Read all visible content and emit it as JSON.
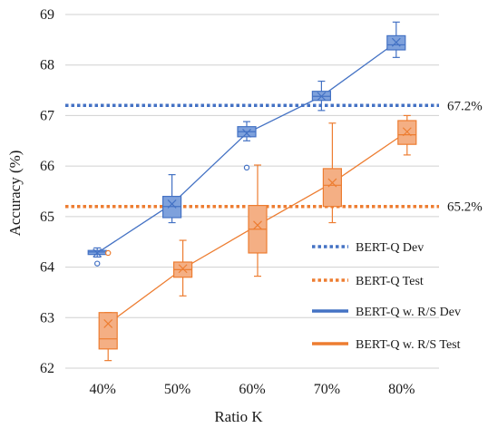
{
  "chart_data": {
    "type": "box",
    "xlabel": "Ratio K",
    "ylabel": "Accuracy (%)",
    "ylim": [
      62,
      69
    ],
    "yticks": [
      62,
      63,
      64,
      65,
      66,
      67,
      68,
      69
    ],
    "grid": "horizontal",
    "legend_position": "right",
    "categories": [
      "40%",
      "50%",
      "60%",
      "70%",
      "80%"
    ],
    "colors": {
      "dev": "#4472C4",
      "dev_fill": "#7EA1DC",
      "test": "#ED7D31",
      "test_fill": "#F4AF84"
    },
    "reference_lines": [
      {
        "name": "BERT-Q  Dev",
        "value": 67.2,
        "label": "67.2%",
        "color": "#4472C4"
      },
      {
        "name": "BERT-Q Test",
        "value": 65.2,
        "label": "65.2%",
        "color": "#ED7D31"
      }
    ],
    "series": [
      {
        "name": "BERT-Q w. R/S Dev",
        "color": "#4472C4",
        "boxes": [
          {
            "category": "40%",
            "min": 64.2,
            "q1": 64.25,
            "median": 64.3,
            "q3": 64.33,
            "max": 64.38,
            "mean": 64.28,
            "outliers": [
              64.07
            ]
          },
          {
            "category": "50%",
            "min": 64.88,
            "q1": 64.98,
            "median": 65.2,
            "q3": 65.4,
            "max": 65.83,
            "mean": 65.25,
            "outliers": []
          },
          {
            "category": "60%",
            "min": 66.5,
            "q1": 66.58,
            "median": 66.68,
            "q3": 66.78,
            "max": 66.88,
            "mean": 66.65,
            "outliers": [
              65.97
            ]
          },
          {
            "category": "70%",
            "min": 67.1,
            "q1": 67.3,
            "median": 67.38,
            "q3": 67.48,
            "max": 67.68,
            "mean": 67.38,
            "outliers": []
          },
          {
            "category": "80%",
            "min": 68.15,
            "q1": 68.3,
            "median": 68.4,
            "q3": 68.58,
            "max": 68.85,
            "mean": 68.45,
            "outliers": []
          }
        ]
      },
      {
        "name": "BERT-Q w. R/S Test",
        "color": "#ED7D31",
        "boxes": [
          {
            "category": "40%",
            "min": 62.15,
            "q1": 62.38,
            "median": 62.58,
            "q3": 63.1,
            "max": 63.1,
            "mean": 62.88,
            "outliers": [
              64.28
            ]
          },
          {
            "category": "50%",
            "min": 63.43,
            "q1": 63.8,
            "median": 63.95,
            "q3": 64.1,
            "max": 64.53,
            "mean": 63.97,
            "outliers": []
          },
          {
            "category": "60%",
            "min": 63.82,
            "q1": 64.28,
            "median": 64.75,
            "q3": 65.22,
            "max": 66.02,
            "mean": 64.83,
            "outliers": []
          },
          {
            "category": "70%",
            "min": 64.88,
            "q1": 65.2,
            "median": 65.62,
            "q3": 65.95,
            "max": 66.85,
            "mean": 65.67,
            "outliers": []
          },
          {
            "category": "80%",
            "min": 66.22,
            "q1": 66.43,
            "median": 66.62,
            "q3": 66.9,
            "max": 67.0,
            "mean": 66.68,
            "outliers": []
          }
        ]
      }
    ],
    "legend": [
      {
        "label": "BERT-Q  Dev",
        "style": "dotted",
        "color": "#4472C4"
      },
      {
        "label": "BERT-Q Test",
        "style": "dotted",
        "color": "#ED7D31"
      },
      {
        "label": "BERT-Q w. R/S Dev",
        "style": "solid",
        "color": "#4472C4"
      },
      {
        "label": "BERT-Q w. R/S Test",
        "style": "solid",
        "color": "#ED7D31"
      }
    ]
  }
}
